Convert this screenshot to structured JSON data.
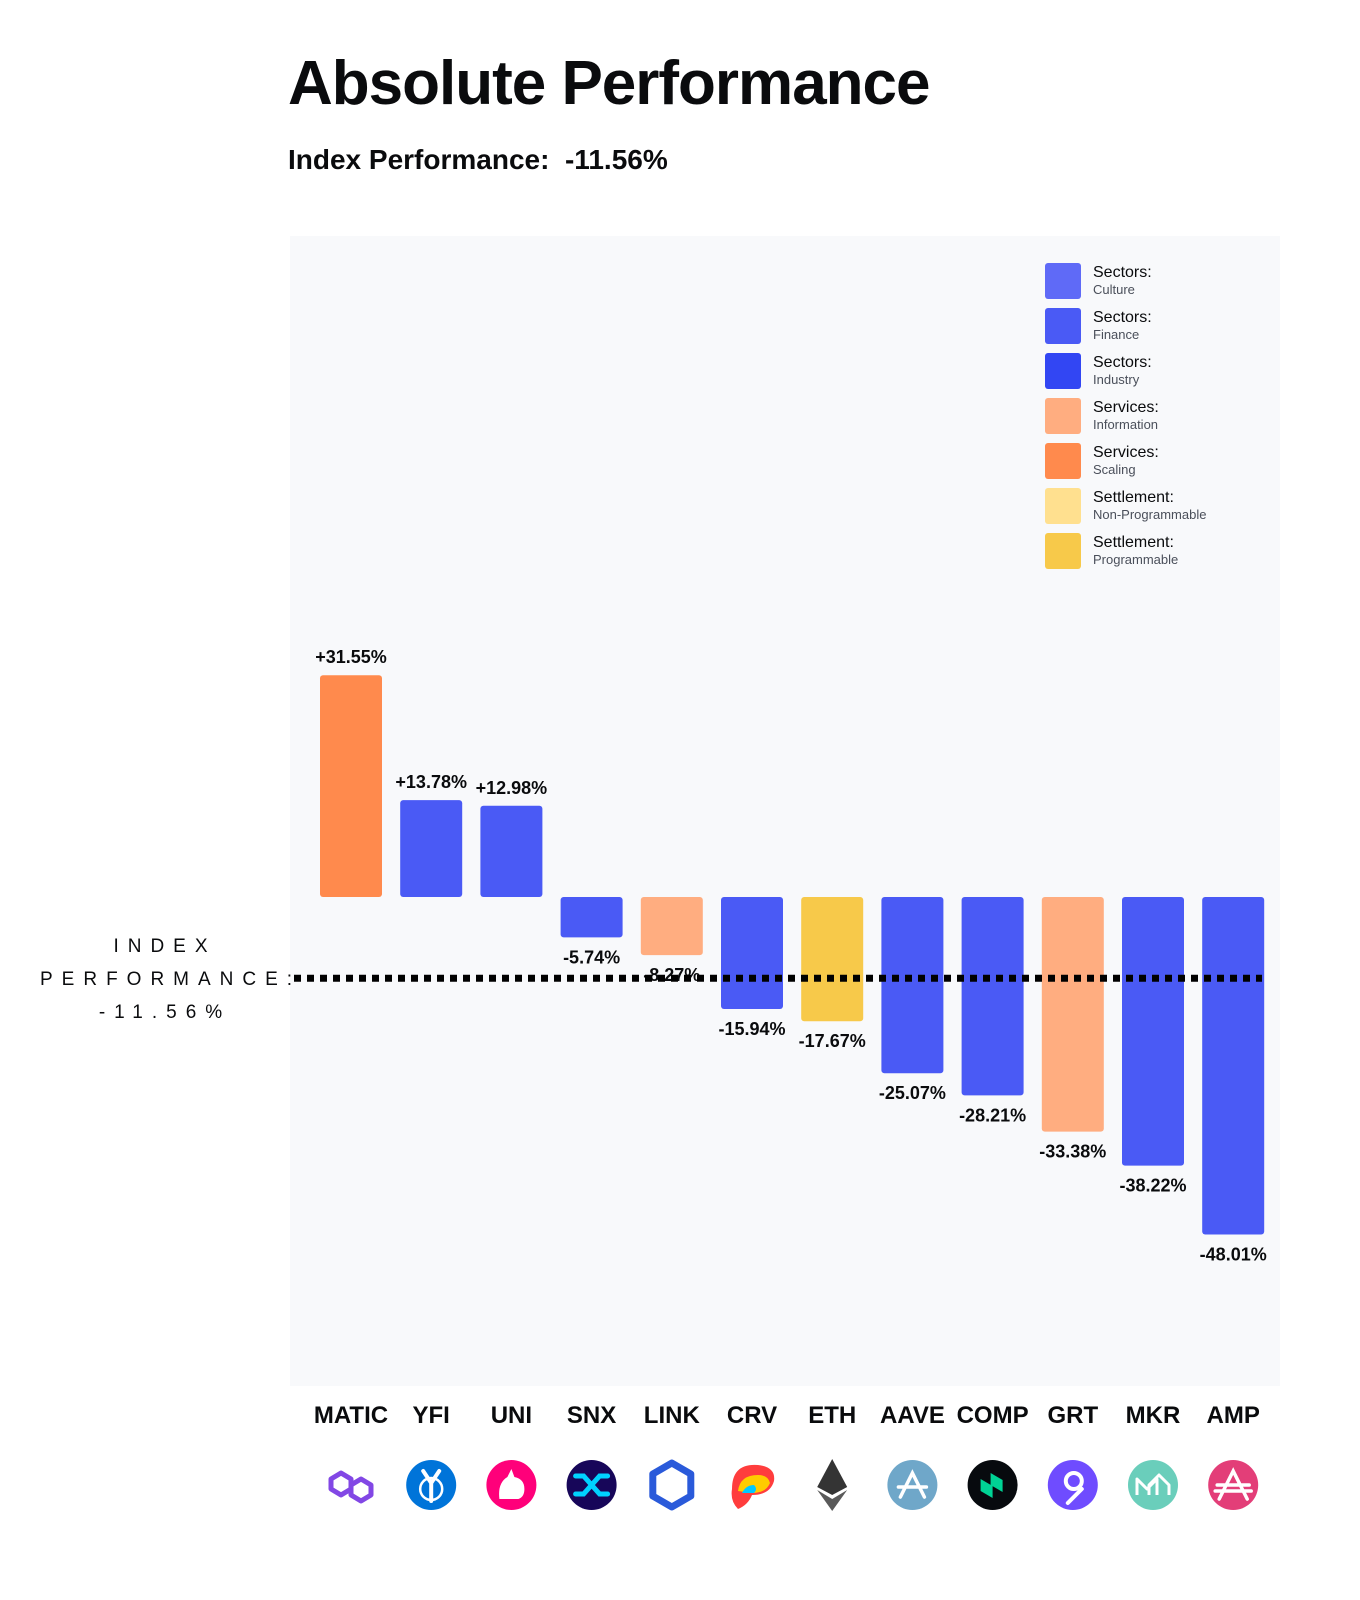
{
  "header": {
    "title": "Absolute Performance",
    "subtitle_label": "Index Performance:",
    "subtitle_value": "-11.56%"
  },
  "index_line_label": {
    "line1": "INDEX",
    "line2": "PERFORMANCE:",
    "line3": "-11.56%"
  },
  "legend": [
    {
      "l1": "Sectors:",
      "l2": "Culture",
      "color": "#5f6af7"
    },
    {
      "l1": "Sectors:",
      "l2": "Finance",
      "color": "#4a5af5"
    },
    {
      "l1": "Sectors:",
      "l2": "Industry",
      "color": "#3246f3"
    },
    {
      "l1": "Services:",
      "l2": "Information",
      "color": "#ffad80"
    },
    {
      "l1": "Services:",
      "l2": "Scaling",
      "color": "#ff8a4d"
    },
    {
      "l1": "Settlement:",
      "l2": "Non-Programmable",
      "color": "#ffe08f"
    },
    {
      "l1": "Settlement:",
      "l2": "Programmable",
      "color": "#f7c94a"
    }
  ],
  "chart_data": {
    "type": "bar",
    "title": "Absolute Performance",
    "categories": [
      "MATIC",
      "YFI",
      "UNI",
      "SNX",
      "LINK",
      "CRV",
      "ETH",
      "AAVE",
      "COMP",
      "GRT",
      "MKR",
      "AMP"
    ],
    "values": [
      31.55,
      13.78,
      12.98,
      -5.74,
      -8.27,
      -15.94,
      -17.67,
      -25.07,
      -28.21,
      -33.38,
      -38.22,
      -48.01
    ],
    "value_labels": [
      "+31.55%",
      "+13.78%",
      "+12.98%",
      "-5.74%",
      "-8.27%",
      "-15.94%",
      "-17.67%",
      "-25.07%",
      "-28.21%",
      "-33.38%",
      "-38.22%",
      "-48.01%"
    ],
    "bar_colors": [
      "#ff8a4d",
      "#4a5af5",
      "#4a5af5",
      "#4a5af5",
      "#ffad80",
      "#4a5af5",
      "#f7c94a",
      "#4a5af5",
      "#4a5af5",
      "#ffad80",
      "#4a5af5",
      "#4a5af5"
    ],
    "reference_line": {
      "value": -11.56,
      "style": "dotted"
    },
    "ylim": [
      -50,
      35
    ],
    "legend_position": "top-right",
    "grid": false
  },
  "token_icons": [
    {
      "name": "matic-icon",
      "bg": "#ffffff",
      "fg": "#8247e5",
      "glyph": "polygon"
    },
    {
      "name": "yfi-icon",
      "bg": "#0074d9",
      "fg": "#ffffff",
      "glyph": "yfi"
    },
    {
      "name": "uni-icon",
      "bg": "#ff007a",
      "fg": "#ffffff",
      "glyph": "unicorn"
    },
    {
      "name": "snx-icon",
      "bg": "#170659",
      "fg": "#00d1ff",
      "glyph": "snx"
    },
    {
      "name": "link-icon",
      "bg": "#ffffff",
      "fg": "#2a5ada",
      "glyph": "hexagon"
    },
    {
      "name": "crv-icon",
      "bg": "#ffffff",
      "fg": "#ff3d3d",
      "glyph": "crv"
    },
    {
      "name": "eth-icon",
      "bg": "#ffffff",
      "fg": "#343434",
      "glyph": "eth"
    },
    {
      "name": "aave-icon",
      "bg": "#6fa7c9",
      "fg": "#ffffff",
      "glyph": "aave"
    },
    {
      "name": "comp-icon",
      "bg": "#070a0e",
      "fg": "#00d395",
      "glyph": "comp"
    },
    {
      "name": "grt-icon",
      "bg": "#6f4cff",
      "fg": "#ffffff",
      "glyph": "grt"
    },
    {
      "name": "mkr-icon",
      "bg": "#6acebb",
      "fg": "#ffffff",
      "glyph": "mkr"
    },
    {
      "name": "amp-icon",
      "bg": "#e33e78",
      "fg": "#ffffff",
      "glyph": "amp"
    }
  ]
}
